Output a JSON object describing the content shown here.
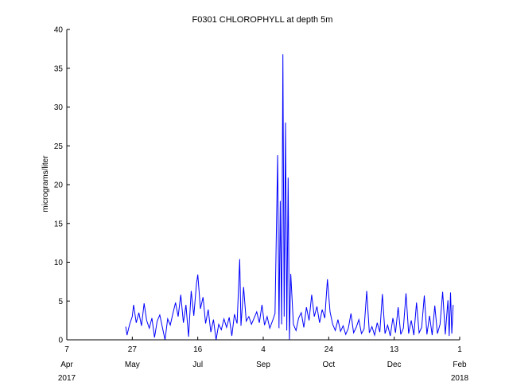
{
  "chart_data": {
    "type": "line",
    "title": "F0301 CHLOROPHYLL at depth 5m",
    "xlabel": "",
    "ylabel": "micrograms/liter",
    "ylim": [
      0,
      40
    ],
    "xlim": [
      "2017-04-07",
      "2018-02-01"
    ],
    "yticks": [
      "0",
      "5",
      "10",
      "15",
      "20",
      "25",
      "30",
      "35",
      "40"
    ],
    "xticks": [
      {
        "date": "2017-04-07",
        "day": "7",
        "month": "Apr",
        "year": "2017"
      },
      {
        "date": "2017-05-27",
        "day": "27",
        "month": "May",
        "year": ""
      },
      {
        "date": "2017-07-16",
        "day": "16",
        "month": "Jul",
        "year": ""
      },
      {
        "date": "2017-09-04",
        "day": "4",
        "month": "Sep",
        "year": ""
      },
      {
        "date": "2017-10-24",
        "day": "24",
        "month": "Oct",
        "year": ""
      },
      {
        "date": "2017-12-13",
        "day": "13",
        "month": "Dec",
        "year": ""
      },
      {
        "date": "2018-02-01",
        "day": "1",
        "month": "Feb",
        "year": "2018"
      }
    ],
    "grid": false,
    "legend": "none",
    "series": [
      {
        "color": "#0000ff",
        "points": [
          [
            "2017-05-22",
            1.7
          ],
          [
            "2017-05-23",
            0.6
          ],
          [
            "2017-05-25",
            2.0
          ],
          [
            "2017-05-27",
            3.0
          ],
          [
            "2017-05-28",
            4.5
          ],
          [
            "2017-05-30",
            2.2
          ],
          [
            "2017-06-01",
            3.5
          ],
          [
            "2017-06-03",
            1.8
          ],
          [
            "2017-06-05",
            4.7
          ],
          [
            "2017-06-07",
            2.5
          ],
          [
            "2017-06-09",
            1.5
          ],
          [
            "2017-06-11",
            2.8
          ],
          [
            "2017-06-13",
            0.3
          ],
          [
            "2017-06-15",
            2.4
          ],
          [
            "2017-06-17",
            3.2
          ],
          [
            "2017-06-19",
            1.6
          ],
          [
            "2017-06-21",
            0.0
          ],
          [
            "2017-06-23",
            2.7
          ],
          [
            "2017-06-25",
            1.9
          ],
          [
            "2017-06-27",
            3.4
          ],
          [
            "2017-06-29",
            4.8
          ],
          [
            "2017-07-01",
            3.0
          ],
          [
            "2017-07-03",
            5.8
          ],
          [
            "2017-07-05",
            2.2
          ],
          [
            "2017-07-07",
            4.5
          ],
          [
            "2017-07-09",
            0.4
          ],
          [
            "2017-07-11",
            6.3
          ],
          [
            "2017-07-13",
            3.1
          ],
          [
            "2017-07-15",
            7.2
          ],
          [
            "2017-07-16",
            8.4
          ],
          [
            "2017-07-18",
            4.0
          ],
          [
            "2017-07-20",
            5.5
          ],
          [
            "2017-07-22",
            2.1
          ],
          [
            "2017-07-24",
            3.9
          ],
          [
            "2017-07-26",
            1.0
          ],
          [
            "2017-07-28",
            2.6
          ],
          [
            "2017-07-30",
            0.0
          ],
          [
            "2017-08-01",
            2.0
          ],
          [
            "2017-08-03",
            1.3
          ],
          [
            "2017-08-05",
            2.7
          ],
          [
            "2017-08-07",
            1.6
          ],
          [
            "2017-08-09",
            2.9
          ],
          [
            "2017-08-11",
            0.5
          ],
          [
            "2017-08-13",
            3.3
          ],
          [
            "2017-08-15",
            2.1
          ],
          [
            "2017-08-17",
            10.4
          ],
          [
            "2017-08-18",
            1.8
          ],
          [
            "2017-08-20",
            6.8
          ],
          [
            "2017-08-22",
            2.4
          ],
          [
            "2017-08-24",
            3.0
          ],
          [
            "2017-08-26",
            2.0
          ],
          [
            "2017-08-28",
            2.8
          ],
          [
            "2017-08-30",
            3.6
          ],
          [
            "2017-09-01",
            2.2
          ],
          [
            "2017-09-03",
            4.5
          ],
          [
            "2017-09-05",
            1.9
          ],
          [
            "2017-09-07",
            3.0
          ],
          [
            "2017-09-09",
            1.5
          ],
          [
            "2017-09-11",
            2.4
          ],
          [
            "2017-09-13",
            3.4
          ],
          [
            "2017-09-15",
            23.8
          ],
          [
            "2017-09-16",
            1.5
          ],
          [
            "2017-09-17",
            17.9
          ],
          [
            "2017-09-18",
            2.0
          ],
          [
            "2017-09-19",
            36.8
          ],
          [
            "2017-09-20",
            3.0
          ],
          [
            "2017-09-21",
            28.0
          ],
          [
            "2017-09-22",
            1.2
          ],
          [
            "2017-09-23",
            20.9
          ],
          [
            "2017-09-24",
            0.0
          ],
          [
            "2017-09-25",
            8.5
          ],
          [
            "2017-09-27",
            2.0
          ],
          [
            "2017-09-29",
            1.2
          ],
          [
            "2017-10-01",
            2.8
          ],
          [
            "2017-10-03",
            3.5
          ],
          [
            "2017-10-05",
            1.6
          ],
          [
            "2017-10-07",
            4.2
          ],
          [
            "2017-10-09",
            2.5
          ],
          [
            "2017-10-11",
            5.8
          ],
          [
            "2017-10-13",
            3.0
          ],
          [
            "2017-10-15",
            4.3
          ],
          [
            "2017-10-17",
            2.2
          ],
          [
            "2017-10-19",
            3.9
          ],
          [
            "2017-10-21",
            2.8
          ],
          [
            "2017-10-23",
            7.8
          ],
          [
            "2017-10-25",
            3.6
          ],
          [
            "2017-10-27",
            2.0
          ],
          [
            "2017-10-29",
            1.2
          ],
          [
            "2017-10-31",
            2.6
          ],
          [
            "2017-11-02",
            1.1
          ],
          [
            "2017-11-04",
            1.8
          ],
          [
            "2017-11-06",
            0.7
          ],
          [
            "2017-11-08",
            1.5
          ],
          [
            "2017-11-10",
            3.4
          ],
          [
            "2017-11-12",
            0.9
          ],
          [
            "2017-11-14",
            1.6
          ],
          [
            "2017-11-16",
            2.6
          ],
          [
            "2017-11-18",
            0.8
          ],
          [
            "2017-11-20",
            1.4
          ],
          [
            "2017-11-22",
            6.3
          ],
          [
            "2017-11-24",
            0.9
          ],
          [
            "2017-11-26",
            1.7
          ],
          [
            "2017-11-28",
            0.6
          ],
          [
            "2017-11-30",
            2.2
          ],
          [
            "2017-12-02",
            1.0
          ],
          [
            "2017-12-04",
            5.9
          ],
          [
            "2017-12-06",
            0.8
          ],
          [
            "2017-12-08",
            1.9
          ],
          [
            "2017-12-10",
            0.5
          ],
          [
            "2017-12-12",
            2.8
          ],
          [
            "2017-12-14",
            0.9
          ],
          [
            "2017-12-16",
            4.2
          ],
          [
            "2017-12-18",
            0.7
          ],
          [
            "2017-12-20",
            1.5
          ],
          [
            "2017-12-22",
            6.0
          ],
          [
            "2017-12-24",
            0.8
          ],
          [
            "2017-12-26",
            2.5
          ],
          [
            "2017-12-28",
            0.6
          ],
          [
            "2017-12-30",
            4.8
          ],
          [
            "2018-01-01",
            0.9
          ],
          [
            "2018-01-03",
            1.6
          ],
          [
            "2018-01-05",
            5.7
          ],
          [
            "2018-01-07",
            0.7
          ],
          [
            "2018-01-09",
            3.1
          ],
          [
            "2018-01-11",
            0.6
          ],
          [
            "2018-01-13",
            4.4
          ],
          [
            "2018-01-15",
            0.8
          ],
          [
            "2018-01-17",
            2.0
          ],
          [
            "2018-01-19",
            6.2
          ],
          [
            "2018-01-21",
            0.7
          ],
          [
            "2018-01-23",
            5.1
          ],
          [
            "2018-01-24",
            0.5
          ],
          [
            "2018-01-25",
            6.1
          ],
          [
            "2018-01-26",
            0.8
          ],
          [
            "2018-01-27",
            4.5
          ]
        ]
      }
    ]
  }
}
